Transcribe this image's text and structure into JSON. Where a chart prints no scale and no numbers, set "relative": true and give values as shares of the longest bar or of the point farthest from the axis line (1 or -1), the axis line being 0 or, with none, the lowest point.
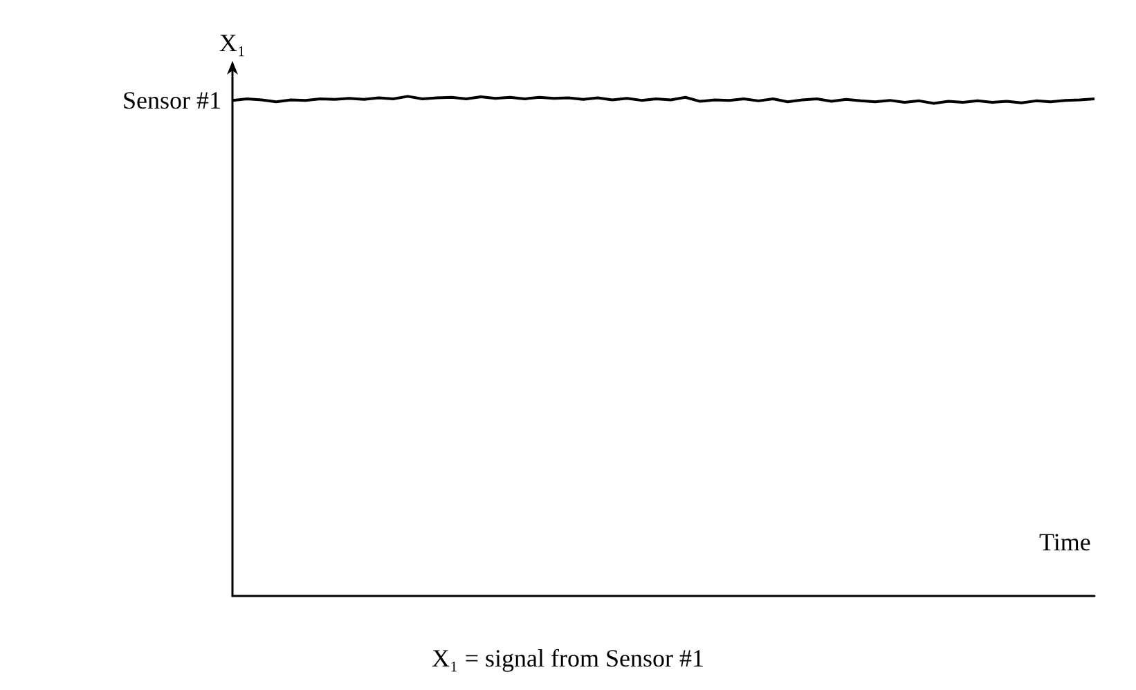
{
  "chart_data": {
    "type": "line",
    "relative": true,
    "xlabel": "Time",
    "ylabel": "X₁",
    "categories": [
      null,
      null,
      null,
      null,
      null,
      null,
      null,
      null,
      null,
      null,
      null,
      null,
      null,
      null,
      null,
      null,
      null,
      null,
      null,
      null,
      null,
      null,
      null,
      null,
      null,
      null,
      null,
      null,
      null,
      null,
      null,
      null,
      null,
      null,
      null,
      null,
      null,
      null,
      null,
      null,
      null,
      null,
      null,
      null,
      null,
      null,
      null,
      null,
      null,
      null,
      null,
      null,
      null,
      null,
      null,
      null,
      null,
      null,
      null,
      null
    ],
    "series": [
      {
        "color": "#000000",
        "values": [
          0.992,
          0.995,
          0.993,
          0.989,
          0.993,
          0.992,
          0.995,
          0.994,
          0.996,
          0.994,
          0.997,
          0.995,
          1.0,
          0.995,
          0.997,
          0.998,
          0.995,
          0.999,
          0.996,
          0.998,
          0.995,
          0.998,
          0.996,
          0.997,
          0.994,
          0.997,
          0.993,
          0.996,
          0.992,
          0.995,
          0.993,
          0.998,
          0.99,
          0.993,
          0.992,
          0.995,
          0.991,
          0.995,
          0.989,
          0.993,
          0.995,
          0.99,
          0.994,
          0.991,
          0.989,
          0.992,
          0.988,
          0.991,
          0.986,
          0.99,
          0.988,
          0.991,
          0.988,
          0.99,
          0.987,
          0.991,
          0.989,
          0.992,
          0.993,
          0.995
        ]
      }
    ],
    "annotations": [
      "Sensor #1",
      "X₁ = signal from Sensor #1"
    ],
    "grid": false,
    "marker": "none",
    "line_style": "solid"
  }
}
